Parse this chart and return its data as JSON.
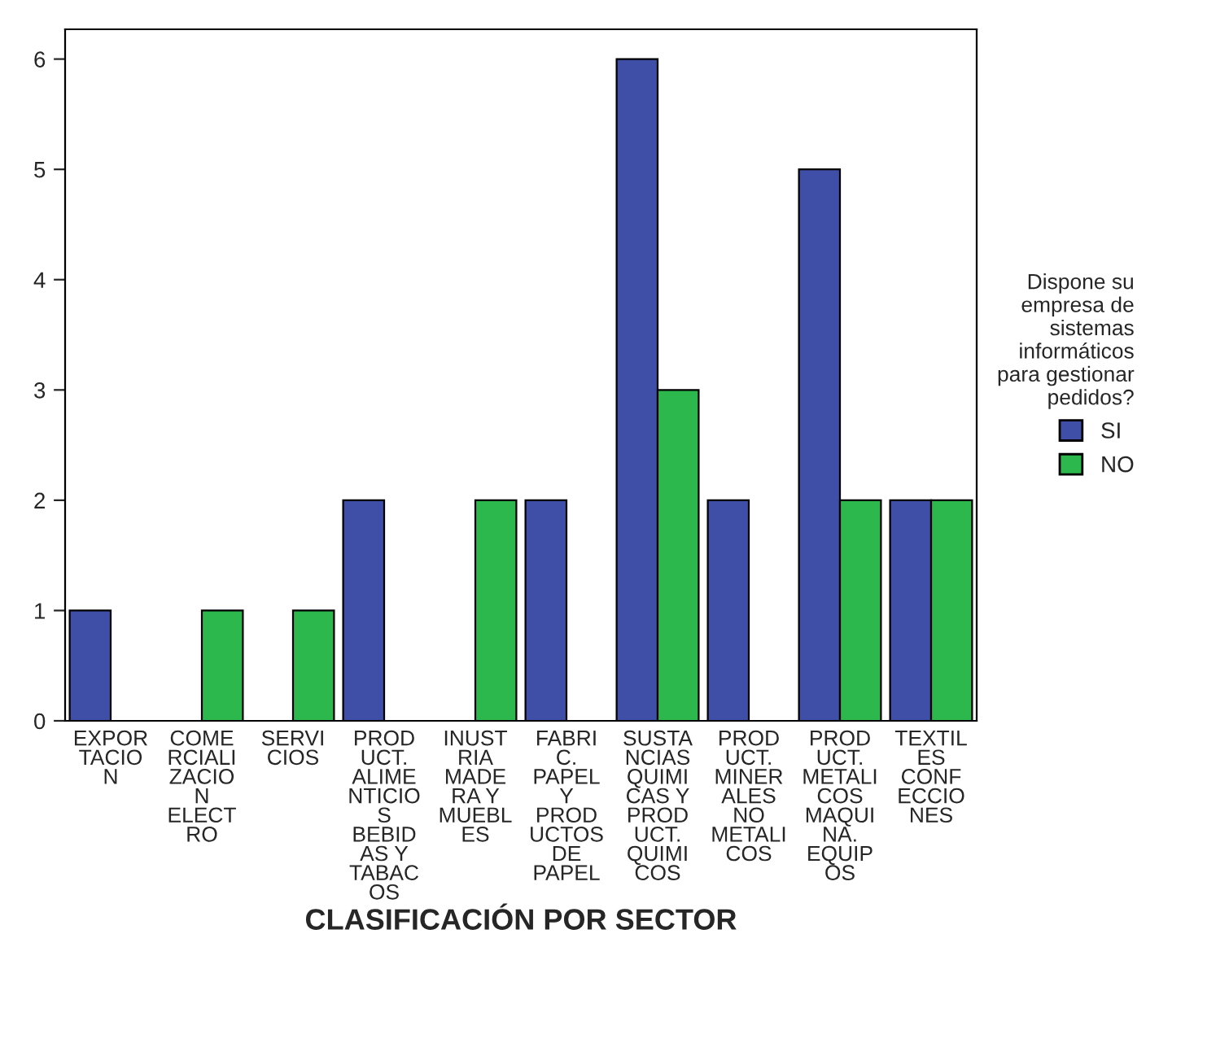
{
  "chart_data": {
    "type": "bar",
    "xlabel": "CLASIFICACIÓN POR SECTOR",
    "legend_title": "Dispone su\nempresa de\nsistemas\ninformáticos\npara gestionar\npedidos?",
    "legend": "right",
    "categories": [
      "EXPOR\nTACIO\nN",
      "COME\nRCIALI\nZACIO\nN\nELECT\nRO",
      "SERVI\nCIOS",
      "PROD\nUCT.\nALIME\nNTICIO\nS\nBEBID\nAS Y\nTABAC\nOS",
      "INUST\nRIA\nMADE\nRA Y\nMUEBL\nES",
      "FABRI\nC.\nPAPEL\nY\nPROD\nUCTOS\nDE\nPAPEL",
      "SUSTA\nNCIAS\nQUIMI\nCAS Y\nPROD\nUCT.\nQUIMI\nCOS",
      "PROD\nUCT.\nMINER\nALES\nNO\nMETALI\nCOS",
      "PROD\nUCT.\nMETALI\nCOS\nMAQUI\nNA.\nEQUIP\nOS",
      "TEXTIL\nES\nCONF\nECCIO\nNES"
    ],
    "series": [
      {
        "name": "SI",
        "color": "#3f4fa8",
        "values": [
          1,
          null,
          null,
          2,
          null,
          2,
          6,
          2,
          5,
          2
        ]
      },
      {
        "name": "NO",
        "color": "#2db84d",
        "values": [
          null,
          1,
          1,
          null,
          2,
          null,
          3,
          null,
          2,
          2
        ]
      }
    ],
    "ylim": [
      0,
      6.27
    ],
    "yticks": [
      0,
      1,
      2,
      3,
      4,
      5,
      6
    ],
    "grid": false
  }
}
